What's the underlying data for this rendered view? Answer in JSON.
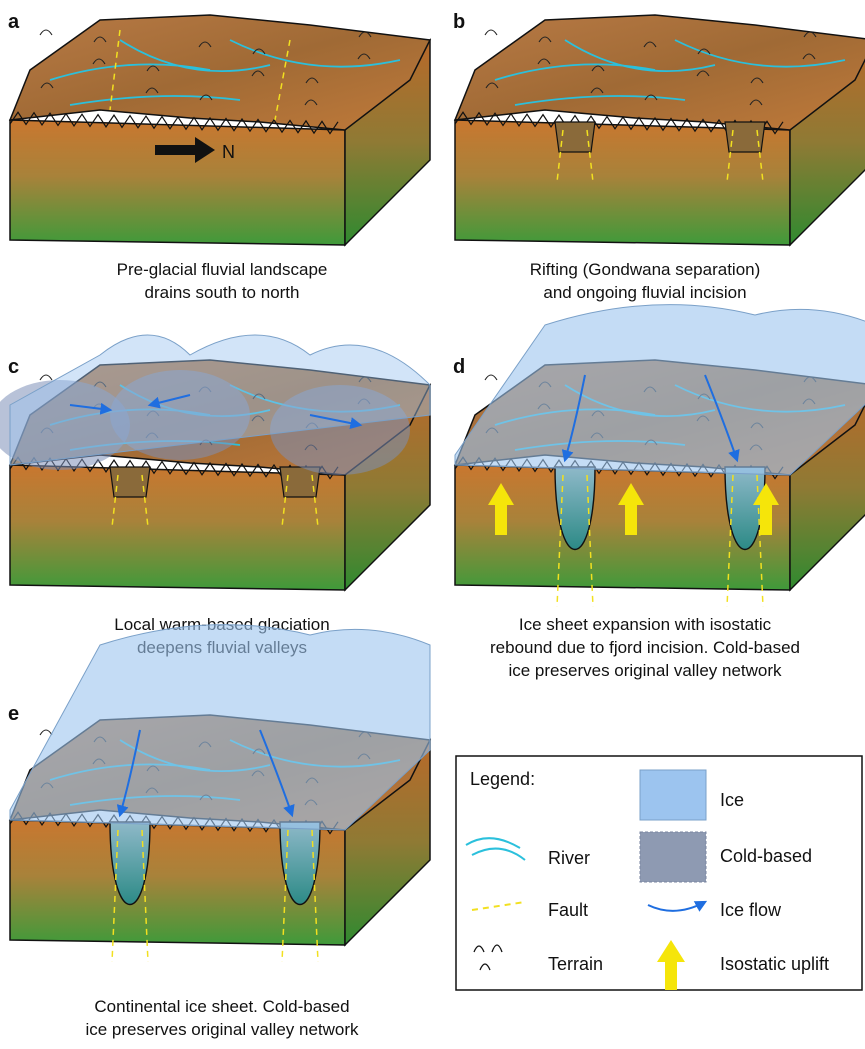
{
  "panels": [
    {
      "label": "a",
      "caption": [
        "Pre-glacial fluvial landscape",
        "drains south to north"
      ],
      "arrow_label": "N"
    },
    {
      "label": "b",
      "caption": [
        "Rifting (Gondwana separation)",
        "and ongoing fluvial incision"
      ]
    },
    {
      "label": "c",
      "caption": [
        "Local warm-based glaciation",
        "deepens fluvial valleys"
      ]
    },
    {
      "label": "d",
      "caption": [
        "Ice sheet expansion with isostatic",
        "rebound due to fjord incision. Cold-based",
        "ice preserves original valley network"
      ]
    },
    {
      "label": "e",
      "caption": [
        "Continental ice sheet. Cold-based",
        "ice preserves original valley network"
      ]
    }
  ],
  "legend": {
    "title": "Legend:",
    "items": [
      "River",
      "Fault",
      "Terrain",
      "Ice",
      "Cold-based",
      "Ice flow",
      "Isostatic uplift"
    ]
  }
}
